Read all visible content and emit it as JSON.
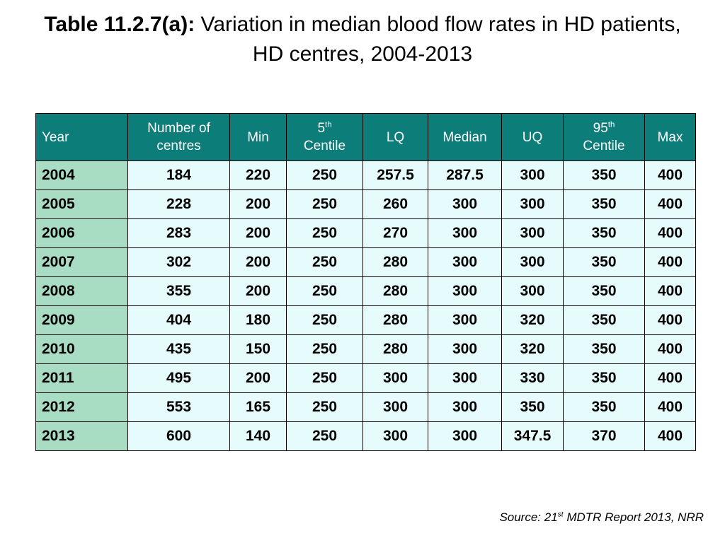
{
  "title": {
    "label": "Table 11.2.7(a):",
    "text": "Variation in median blood flow rates in HD patients, HD centres, 2004-2013"
  },
  "table": {
    "headers": {
      "year": "Year",
      "centres_line1": "Number of",
      "centres_line2": "centres",
      "min": "Min",
      "p5_num": "5",
      "p5_sup": "th",
      "p5_word": "Centile",
      "lq": "LQ",
      "median": "Median",
      "uq": "UQ",
      "p95_num": "95",
      "p95_sup": "th",
      "p95_word": "Centile",
      "max": "Max"
    },
    "rows": [
      {
        "year": "2004",
        "centres": "184",
        "min": "220",
        "p5": "250",
        "lq": "257.5",
        "median": "287.5",
        "uq": "300",
        "p95": "350",
        "max": "400"
      },
      {
        "year": "2005",
        "centres": "228",
        "min": "200",
        "p5": "250",
        "lq": "260",
        "median": "300",
        "uq": "300",
        "p95": "350",
        "max": "400"
      },
      {
        "year": "2006",
        "centres": "283",
        "min": "200",
        "p5": "250",
        "lq": "270",
        "median": "300",
        "uq": "300",
        "p95": "350",
        "max": "400"
      },
      {
        "year": "2007",
        "centres": "302",
        "min": "200",
        "p5": "250",
        "lq": "280",
        "median": "300",
        "uq": "300",
        "p95": "350",
        "max": "400"
      },
      {
        "year": "2008",
        "centres": "355",
        "min": "200",
        "p5": "250",
        "lq": "280",
        "median": "300",
        "uq": "300",
        "p95": "350",
        "max": "400"
      },
      {
        "year": "2009",
        "centres": "404",
        "min": "180",
        "p5": "250",
        "lq": "280",
        "median": "300",
        "uq": "320",
        "p95": "350",
        "max": "400"
      },
      {
        "year": "2010",
        "centres": "435",
        "min": "150",
        "p5": "250",
        "lq": "280",
        "median": "300",
        "uq": "320",
        "p95": "350",
        "max": "400"
      },
      {
        "year": "2011",
        "centres": "495",
        "min": "200",
        "p5": "250",
        "lq": "300",
        "median": "300",
        "uq": "330",
        "p95": "350",
        "max": "400"
      },
      {
        "year": "2012",
        "centres": "553",
        "min": "165",
        "p5": "250",
        "lq": "300",
        "median": "300",
        "uq": "350",
        "p95": "350",
        "max": "400"
      },
      {
        "year": "2013",
        "centres": "600",
        "min": "140",
        "p5": "250",
        "lq": "300",
        "median": "300",
        "uq": "347.5",
        "p95": "370",
        "max": "400"
      }
    ]
  },
  "source": {
    "prefix": "Source: 21",
    "sup": "st",
    "suffix": " MDTR Report 2013, NRR"
  },
  "colors": {
    "header_bg": "#0d7d7a",
    "year_col_bg": "#a8ddc3",
    "data_cell_bg": "#e6fbfb"
  }
}
